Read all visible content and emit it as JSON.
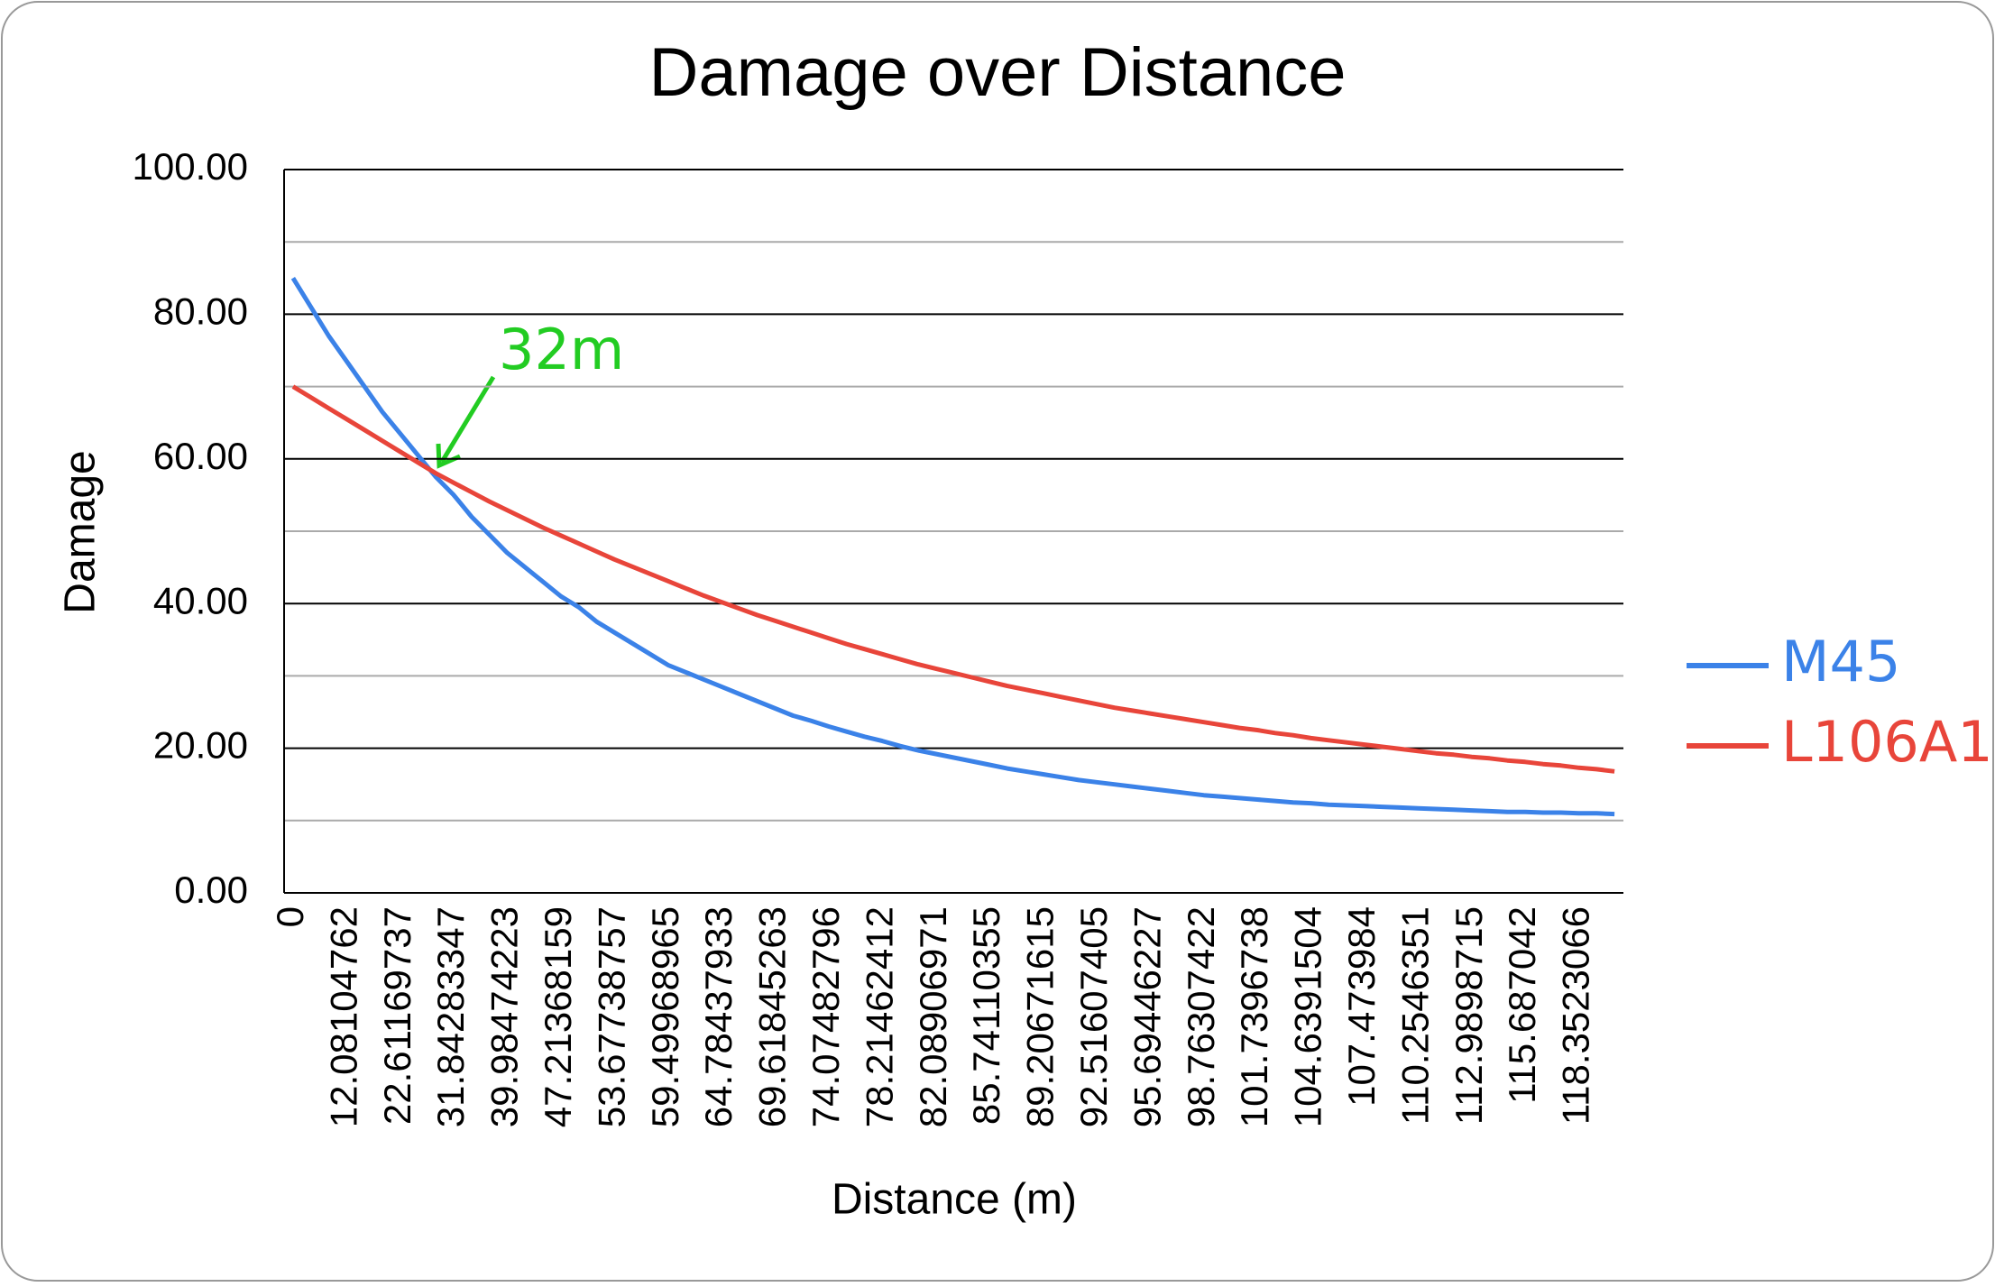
{
  "chart_data": {
    "type": "line",
    "title": "Damage over Distance",
    "x_label": "Distance (m)",
    "y_label": "Damage",
    "annotation": "32m",
    "annotation_color": "#22cc22",
    "categories": [
      "0",
      null,
      null,
      "12.08104762",
      null,
      null,
      "22.61169737",
      null,
      null,
      "31.84283347",
      null,
      null,
      "39.98474223",
      null,
      null,
      "47.21368159",
      null,
      null,
      "53.67738757",
      null,
      null,
      "59.49968965",
      null,
      null,
      "64.78437933",
      null,
      null,
      "69.61845263",
      null,
      null,
      "74.07482796",
      null,
      null,
      "78.21462412",
      null,
      null,
      "82.08906971",
      null,
      null,
      "85.74110355",
      null,
      null,
      "89.20671615",
      null,
      null,
      "92.51607405",
      null,
      null,
      "95.69446227",
      null,
      null,
      "98.76307422",
      null,
      null,
      "101.7396738",
      null,
      null,
      "104.6391504",
      null,
      null,
      "107.473984",
      null,
      null,
      "110.2546351",
      null,
      null,
      "112.9898715",
      null,
      null,
      "115.687042",
      null,
      null,
      "118.3523066",
      null,
      null
    ],
    "series": [
      {
        "name": "M45",
        "color": "#3b82e8",
        "values": [
          85,
          81,
          77,
          73.5,
          70,
          66.5,
          63.5,
          60.5,
          57.5,
          55,
          52,
          49.5,
          47,
          45,
          43,
          41,
          39.5,
          37.5,
          36,
          34.5,
          33,
          31.5,
          30.5,
          29.5,
          28.5,
          27.5,
          26.5,
          25.5,
          24.5,
          23.8,
          23,
          22.3,
          21.6,
          21,
          20.3,
          19.7,
          19.2,
          18.7,
          18.2,
          17.7,
          17.2,
          16.8,
          16.4,
          16,
          15.6,
          15.3,
          15,
          14.7,
          14.4,
          14.1,
          13.8,
          13.5,
          13.3,
          13.1,
          12.9,
          12.7,
          12.5,
          12.4,
          12.2,
          12.1,
          12,
          11.9,
          11.8,
          11.7,
          11.6,
          11.5,
          11.4,
          11.3,
          11.2,
          11.2,
          11.1,
          11.1,
          11,
          11,
          10.9
        ]
      },
      {
        "name": "L106A1",
        "color": "#e8453a",
        "values": [
          70,
          68.5,
          67,
          65.5,
          64,
          62.5,
          61,
          59.5,
          58,
          56.7,
          55.4,
          54.1,
          52.9,
          51.7,
          50.5,
          49.4,
          48.3,
          47.2,
          46.1,
          45.1,
          44.1,
          43.1,
          42.1,
          41.1,
          40.2,
          39.3,
          38.4,
          37.6,
          36.8,
          36,
          35.2,
          34.4,
          33.7,
          33,
          32.3,
          31.6,
          31,
          30.4,
          29.8,
          29.2,
          28.6,
          28.1,
          27.6,
          27.1,
          26.6,
          26.1,
          25.6,
          25.2,
          24.8,
          24.4,
          24,
          23.6,
          23.2,
          22.8,
          22.5,
          22.1,
          21.8,
          21.4,
          21.1,
          20.8,
          20.5,
          20.2,
          19.9,
          19.6,
          19.3,
          19.1,
          18.8,
          18.6,
          18.3,
          18.1,
          17.8,
          17.6,
          17.3,
          17.1,
          16.8
        ]
      }
    ],
    "ylim": [
      0,
      100
    ],
    "yticks": [
      {
        "value": 0,
        "label": "0.00"
      },
      {
        "value": 20,
        "label": "20.00"
      },
      {
        "value": 40,
        "label": "40.00"
      },
      {
        "value": 60,
        "label": "60.00"
      },
      {
        "value": 80,
        "label": "80.00"
      },
      {
        "value": 100,
        "label": "100.00"
      }
    ],
    "yminor": [
      10,
      30,
      50,
      70,
      90
    ],
    "grid": true,
    "legend": "right"
  }
}
